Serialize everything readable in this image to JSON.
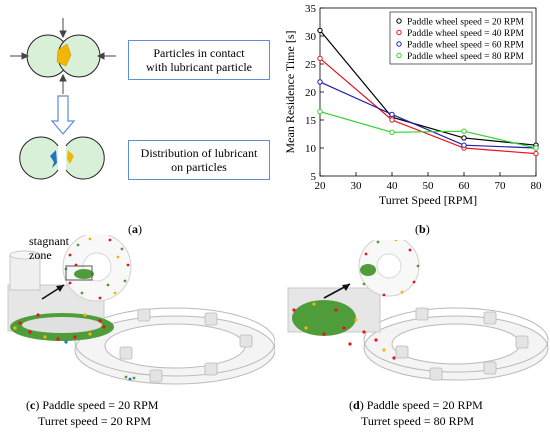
{
  "panel_a": {
    "box1": "Particles in contact\nwith lubricant particle",
    "box2": "Distribution of lubricant\non particles",
    "label": "a"
  },
  "panel_b": {
    "label": "b"
  },
  "panel_c": {
    "label": "c",
    "annotation": "stagnant\nzone",
    "caption_line1": " Paddle speed = 20 RPM",
    "caption_line2": "Turret speed = 20 RPM"
  },
  "panel_d": {
    "label": "d",
    "caption_line1": " Paddle speed = 20 RPM",
    "caption_line2": "Turret speed = 80 RPM"
  },
  "colors": {
    "box_border": "#5b8fd6",
    "lubricant": "#f2b705",
    "lubricant_blue": "#1e73c8"
  },
  "chart_data": {
    "type": "line",
    "xlabel": "Turret Speed [RPM]",
    "ylabel": "Mean Residence Time [s]",
    "xlim": [
      20,
      80
    ],
    "ylim": [
      5,
      35
    ],
    "xticks": [
      20,
      30,
      40,
      50,
      60,
      70,
      80
    ],
    "yticks": [
      5,
      10,
      15,
      20,
      25,
      30,
      35
    ],
    "x": [
      20,
      40,
      60,
      80
    ],
    "legend_position": "top-right",
    "grid": false,
    "series": [
      {
        "name": "Paddle wheel speed = 20 RPM",
        "color": "#000000",
        "values": [
          31.0,
          15.5,
          11.8,
          10.5
        ]
      },
      {
        "name": "Paddle wheel speed = 40 RPM",
        "color": "#e8141b",
        "values": [
          26.0,
          15.0,
          10.0,
          9.0
        ]
      },
      {
        "name": "Paddle wheel speed = 60 RPM",
        "color": "#1f1fa8",
        "values": [
          21.8,
          16.0,
          10.5,
          10.0
        ]
      },
      {
        "name": "Paddle wheel speed = 80 RPM",
        "color": "#2ed42e",
        "values": [
          16.5,
          12.8,
          13.0,
          10.0
        ]
      }
    ]
  }
}
